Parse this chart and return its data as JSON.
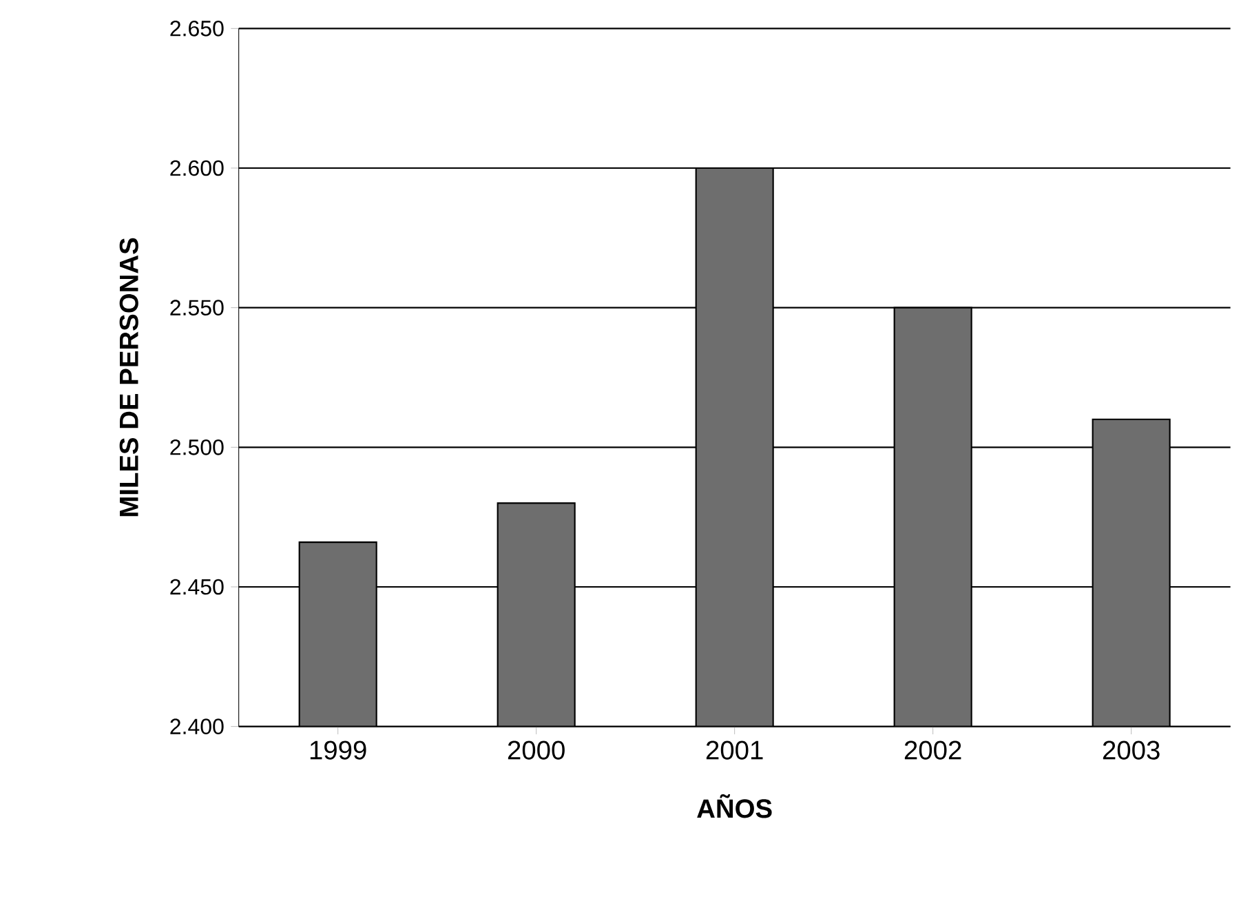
{
  "chart_data": {
    "type": "bar",
    "xlabel": "AÑOS",
    "ylabel": "MILES DE PERSONAS",
    "categories": [
      "1999",
      "2000",
      "2001",
      "2002",
      "2003"
    ],
    "values": [
      2466,
      2480,
      2600,
      2550,
      2510
    ],
    "color": "#6e6e6e",
    "ylim": [
      2400,
      2650
    ],
    "yticks": [
      {
        "value": 2400,
        "label": "2.400"
      },
      {
        "value": 2450,
        "label": "2.450"
      },
      {
        "value": 2500,
        "label": "2.500"
      },
      {
        "value": 2550,
        "label": "2.550"
      },
      {
        "value": 2600,
        "label": "2.600"
      },
      {
        "value": 2650,
        "label": "2.650"
      }
    ],
    "grid": "y"
  }
}
